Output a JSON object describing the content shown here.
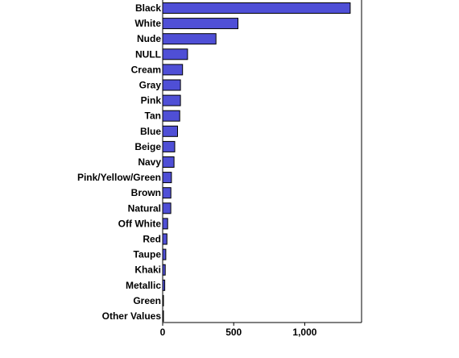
{
  "colors": {
    "bar_fill": "#4f4fd6",
    "bar_stroke": "#000000",
    "axis": "#000000",
    "background": "#ffffff"
  },
  "chart_data": {
    "type": "bar",
    "orientation": "horizontal",
    "title": "",
    "xlabel": "",
    "ylabel": "",
    "categories": [
      "Black",
      "White",
      "Nude",
      "NULL",
      "Cream",
      "Gray",
      "Pink",
      "Tan",
      "Blue",
      "Beige",
      "Navy",
      "Pink/Yellow/Green",
      "Brown",
      "Natural",
      "Off White",
      "Red",
      "Taupe",
      "Khaki",
      "Metallic",
      "Green",
      "Other Values"
    ],
    "values": [
      1320,
      530,
      375,
      175,
      140,
      125,
      125,
      120,
      105,
      85,
      80,
      62,
      58,
      57,
      35,
      30,
      22,
      18,
      15,
      5,
      2
    ],
    "xlim": [
      0,
      1400
    ],
    "x_ticks": [
      0,
      500,
      1000
    ],
    "x_tick_labels": [
      "0",
      "500",
      "1,000"
    ],
    "grid": false,
    "legend": "none"
  }
}
